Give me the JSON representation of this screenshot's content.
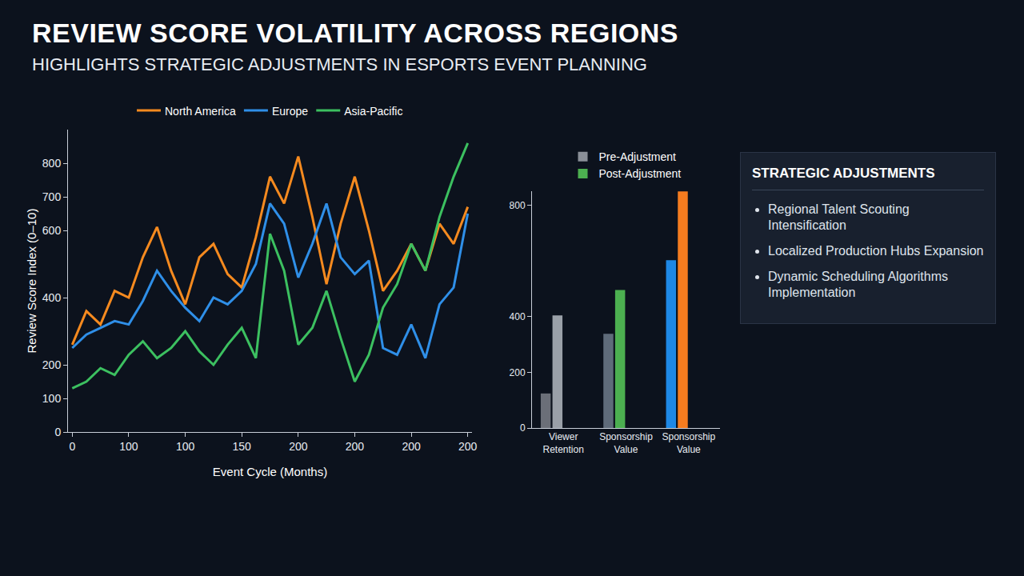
{
  "chart_data": [
    {
      "type": "line",
      "title": "REVIEW SCORE VOLATILITY ACROSS REGIONS",
      "subtitle": "HIGHLIGHTS STRATEGIC ADJUSTMENTS IN ESPORTS EVENT PLANNING",
      "x_label": "Event Cycle (Months)",
      "y_label": "Review Score Index (0–10)",
      "categories": [
        "0",
        null,
        null,
        null,
        "100",
        null,
        null,
        null,
        "100",
        null,
        null,
        null,
        "150",
        null,
        null,
        null,
        "200",
        null,
        null,
        null,
        "200",
        null,
        null,
        null,
        "200",
        null,
        null,
        null,
        "200"
      ],
      "series": [
        {
          "name": "North America",
          "color": "#f58a1f",
          "values": [
            260,
            360,
            320,
            420,
            400,
            520,
            610,
            480,
            380,
            520,
            560,
            470,
            430,
            580,
            760,
            680,
            820,
            640,
            440,
            620,
            760,
            600,
            420,
            480,
            560,
            480,
            620,
            560,
            670
          ]
        },
        {
          "name": "Europe",
          "color": "#2f8fe8",
          "values": [
            250,
            290,
            310,
            330,
            320,
            390,
            480,
            420,
            370,
            330,
            400,
            380,
            420,
            500,
            680,
            620,
            460,
            560,
            680,
            520,
            470,
            510,
            250,
            230,
            320,
            220,
            380,
            430,
            650
          ]
        },
        {
          "name": "Asia-Pacific",
          "color": "#3cc060",
          "values": [
            130,
            150,
            190,
            170,
            230,
            270,
            220,
            250,
            300,
            240,
            200,
            260,
            310,
            220,
            590,
            480,
            260,
            310,
            420,
            280,
            150,
            230,
            370,
            440,
            560,
            480,
            640,
            760,
            860
          ]
        }
      ],
      "ylim": [
        0,
        900
      ],
      "yticks": [
        0,
        100,
        200,
        400,
        600,
        700,
        800
      ],
      "grid": false,
      "legend": "top"
    },
    {
      "type": "bar",
      "categories": [
        "Viewer Retention",
        "Sponsorship Value",
        "Sponsorship Value"
      ],
      "series": [
        {
          "name": "Pre-Adjustment",
          "color": "#8a8f98",
          "colors": [
            "#6b6f78",
            "#5f6b7a",
            "#1e88e5"
          ],
          "values": [
            124,
            338,
            602
          ]
        },
        {
          "name": "Post-Adjustment",
          "color": "#4caf50",
          "colors": [
            "#9aa0a8",
            "#4caf50",
            "#f57c1f"
          ],
          "values": [
            404,
            495,
            849
          ]
        }
      ],
      "ylim": [
        0,
        850
      ],
      "yticks": [
        0,
        200,
        400,
        800
      ],
      "grid": false,
      "legend": "top"
    }
  ],
  "strategic_adjustments": {
    "title": "STRATEGIC ADJUSTMENTS",
    "items": [
      "Regional Talent Scouting Intensification",
      "Localized Production Hubs Expansion",
      "Dynamic Scheduling Algorithms Implementation"
    ]
  }
}
